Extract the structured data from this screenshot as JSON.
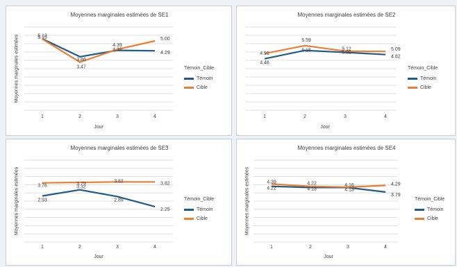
{
  "legend": {
    "title": "Témoin_Cible",
    "items": [
      {
        "label": "Témoin",
        "color": "#1f5c85"
      },
      {
        "label": "Cible",
        "color": "#ed7d31"
      }
    ]
  },
  "chart_data": [
    {
      "type": "line",
      "title": "Moyennes marginales estimées de SE1",
      "xlabel": "Jour",
      "ylabel": "Moyennes marginales estimées",
      "categories": [
        "1",
        "2",
        "3",
        "4"
      ],
      "grid": true,
      "legend_position": "right",
      "series": [
        {
          "name": "Témoin",
          "values": [
            5.15,
            3.86,
            4.32,
            4.29
          ],
          "labels": [
            "5.15",
            "3.86",
            "4.32",
            "4.29"
          ]
        },
        {
          "name": "Cible",
          "values": [
            5.13,
            3.47,
            4.39,
            5.0
          ],
          "labels": [
            "5.13",
            "3.47",
            "4.39",
            "5.00"
          ]
        }
      ]
    },
    {
      "type": "line",
      "title": "Moyennes marginales estimées de SE2",
      "xlabel": "Jour",
      "ylabel": "",
      "categories": [
        "1",
        "2",
        "3",
        "4"
      ],
      "grid": true,
      "legend_position": "right",
      "series": [
        {
          "name": "Témoin",
          "values": [
            4.46,
            5.18,
            5.01,
            4.82
          ],
          "labels": [
            "4.46",
            "5.18",
            "5.01",
            "4.82"
          ]
        },
        {
          "name": "Cible",
          "values": [
            4.91,
            5.59,
            5.12,
            5.09
          ],
          "labels": [
            "4.91",
            "5.59",
            "5.12",
            "5.09"
          ]
        }
      ]
    },
    {
      "type": "line",
      "title": "Moyennes marginales estimées de SE3",
      "xlabel": "Jour",
      "ylabel": "Moyennes marginales estimées",
      "categories": [
        "1",
        "2",
        "3",
        "4"
      ],
      "grid": true,
      "legend_position": "right",
      "series": [
        {
          "name": "Témoin",
          "values": [
            2.93,
            3.32,
            2.89,
            2.25
          ],
          "labels": [
            "2.93",
            "3.32",
            "2.89",
            "2.25"
          ]
        },
        {
          "name": "Cible",
          "values": [
            3.76,
            3.79,
            3.82,
            3.82
          ],
          "labels": [
            "3.76",
            "3.79",
            "3.82",
            "3.82"
          ]
        }
      ]
    },
    {
      "type": "line",
      "title": "Moyennes marginales estimées de SE4",
      "xlabel": "Jour",
      "ylabel": "Moyennes marginales estimées",
      "categories": [
        "1",
        "2",
        "3",
        "4"
      ],
      "grid": true,
      "legend_position": "right",
      "series": [
        {
          "name": "Témoin",
          "values": [
            4.22,
            4.13,
            4.13,
            3.79
          ],
          "labels": [
            "4.22",
            "4.13",
            "4.13",
            "3.79"
          ]
        },
        {
          "name": "Cible",
          "values": [
            4.39,
            4.22,
            4.16,
            4.29
          ],
          "labels": [
            "4.39",
            "4.22",
            "4.16",
            "4.29"
          ]
        }
      ]
    }
  ]
}
